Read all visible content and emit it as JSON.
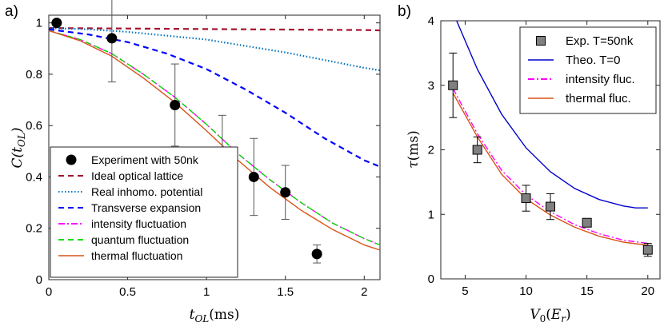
{
  "chart_data": [
    {
      "panel_label": "a)",
      "type": "line",
      "xlabel": "t_OL(ms)",
      "ylabel": "C(t_OL)",
      "xlim": [
        0,
        2.1
      ],
      "ylim": [
        0,
        1.03
      ],
      "xticks": [
        0,
        0.5,
        1,
        1.5,
        2
      ],
      "xtick_labels": [
        "0",
        "0.5",
        "1",
        "1.5",
        "2"
      ],
      "yticks": [
        0,
        0.2,
        0.4,
        0.6,
        0.8,
        1
      ],
      "ytick_labels": [
        "0",
        "0.2",
        "0.4",
        "0.6",
        "0.8",
        "1"
      ],
      "legend_position": "bottom-left",
      "experiment": {
        "name": "Experiment with 50nk",
        "color": "#000000",
        "points": [
          {
            "x": 0.05,
            "y": 1.0,
            "err": 0
          },
          {
            "x": 0.4,
            "y": 0.94,
            "err": 0.17
          },
          {
            "x": 0.8,
            "y": 0.68,
            "err": 0.16
          },
          {
            "x": 1.1,
            "y": 0.49,
            "err": 0.15
          },
          {
            "x": 1.3,
            "y": 0.4,
            "err": 0.15
          },
          {
            "x": 1.5,
            "y": 0.34,
            "err": 0.105
          },
          {
            "x": 1.7,
            "y": 0.1,
            "err": 0.035
          }
        ]
      },
      "series": [
        {
          "name": "Ideal optical lattice",
          "color": "#a2142f",
          "style": "dashed",
          "x": [
            0,
            0.5,
            1,
            1.5,
            2,
            2.1
          ],
          "y": [
            0.98,
            0.978,
            0.976,
            0.974,
            0.972,
            0.971
          ]
        },
        {
          "name": "Real inhomo. potential",
          "color": "#0072bd",
          "style": "dotted",
          "x": [
            0,
            0.25,
            0.5,
            0.75,
            1,
            1.25,
            1.5,
            1.75,
            2,
            2.1
          ],
          "y": [
            0.98,
            0.975,
            0.965,
            0.95,
            0.935,
            0.91,
            0.885,
            0.855,
            0.825,
            0.815
          ]
        },
        {
          "name": "Transverse expansion",
          "color": "#0000ff",
          "style": "dashed",
          "x": [
            0,
            0.25,
            0.5,
            0.75,
            1,
            1.25,
            1.5,
            1.75,
            2,
            2.1
          ],
          "y": [
            0.975,
            0.955,
            0.925,
            0.88,
            0.82,
            0.74,
            0.65,
            0.55,
            0.465,
            0.44
          ]
        },
        {
          "name": "intensity fluctuation",
          "color": "#ff00ff",
          "style": "dashdot",
          "x": [
            0,
            0.2,
            0.4,
            0.6,
            0.8,
            1,
            1.2,
            1.4,
            1.6,
            1.8,
            2,
            2.1
          ],
          "y": [
            0.97,
            0.935,
            0.88,
            0.8,
            0.71,
            0.605,
            0.49,
            0.39,
            0.3,
            0.22,
            0.16,
            0.135
          ]
        },
        {
          "name": "quantum fluctuation",
          "color": "#00dd00",
          "style": "dashed",
          "x": [
            0,
            0.2,
            0.4,
            0.6,
            0.8,
            1,
            1.2,
            1.4,
            1.6,
            1.8,
            2,
            2.1
          ],
          "y": [
            0.97,
            0.935,
            0.88,
            0.8,
            0.71,
            0.605,
            0.49,
            0.39,
            0.3,
            0.22,
            0.16,
            0.135
          ]
        },
        {
          "name": "thermal fluctuation",
          "color": "#d95319",
          "style": "solid",
          "x": [
            0,
            0.2,
            0.4,
            0.6,
            0.8,
            1,
            1.2,
            1.4,
            1.6,
            1.8,
            2,
            2.1
          ],
          "y": [
            0.97,
            0.93,
            0.87,
            0.785,
            0.69,
            0.58,
            0.465,
            0.36,
            0.27,
            0.195,
            0.135,
            0.115
          ]
        }
      ]
    },
    {
      "panel_label": "b)",
      "type": "line",
      "xlabel": "V_0(E_r)",
      "ylabel": "τ(ms)",
      "xlim": [
        3,
        21
      ],
      "ylim": [
        0,
        4
      ],
      "xticks": [
        5,
        10,
        15,
        20
      ],
      "xtick_labels": [
        "5",
        "10",
        "15",
        "20"
      ],
      "yticks": [
        0,
        1,
        2,
        3,
        4
      ],
      "ytick_labels": [
        "0",
        "1",
        "2",
        "3",
        "4"
      ],
      "legend_position": "top-right",
      "experiment": {
        "name": "Exp. T=50nk",
        "color": "#808080",
        "points": [
          {
            "x": 4,
            "y": 3.0,
            "err": 0.5
          },
          {
            "x": 6,
            "y": 2.0,
            "err": 0.2
          },
          {
            "x": 10,
            "y": 1.25,
            "err": 0.2
          },
          {
            "x": 12,
            "y": 1.12,
            "err": 0.2
          },
          {
            "x": 15,
            "y": 0.87,
            "err": 0.05
          },
          {
            "x": 20,
            "y": 0.45,
            "err": 0.1
          }
        ]
      },
      "series": [
        {
          "name": "Theo. T=0",
          "color": "#0000cc",
          "style": "solid",
          "x": [
            4.3,
            6,
            8,
            10,
            12,
            14,
            16,
            18,
            19,
            20
          ],
          "y": [
            4.0,
            3.25,
            2.55,
            2.03,
            1.66,
            1.4,
            1.23,
            1.13,
            1.1,
            1.1
          ]
        },
        {
          "name": "intensity fluc.",
          "color": "#ff00ff",
          "style": "dashdot",
          "x": [
            4,
            6,
            8,
            10,
            12,
            14,
            16,
            18,
            20
          ],
          "y": [
            2.95,
            2.25,
            1.68,
            1.3,
            1.04,
            0.84,
            0.7,
            0.6,
            0.55
          ]
        },
        {
          "name": "thermal fluc.",
          "color": "#d95319",
          "style": "solid",
          "x": [
            4,
            6,
            8,
            10,
            12,
            14,
            16,
            18,
            20
          ],
          "y": [
            2.88,
            2.2,
            1.62,
            1.24,
            0.99,
            0.8,
            0.66,
            0.57,
            0.52
          ]
        }
      ]
    }
  ]
}
